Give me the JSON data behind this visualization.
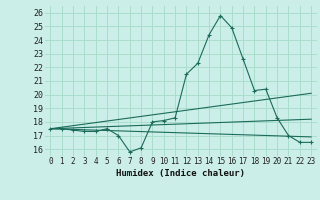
{
  "title": "",
  "xlabel": "Humidex (Indice chaleur)",
  "bg_color": "#cceee8",
  "grid_color": "#aaddcc",
  "line_color": "#1a6b5a",
  "xlim": [
    -0.5,
    23.5
  ],
  "ylim": [
    15.5,
    26.5
  ],
  "xticks": [
    0,
    1,
    2,
    3,
    4,
    5,
    6,
    7,
    8,
    9,
    10,
    11,
    12,
    13,
    14,
    15,
    16,
    17,
    18,
    19,
    20,
    21,
    22,
    23
  ],
  "yticks": [
    16,
    17,
    18,
    19,
    20,
    21,
    22,
    23,
    24,
    25,
    26
  ],
  "series_main": {
    "x": [
      0,
      1,
      2,
      3,
      4,
      5,
      6,
      7,
      8,
      9,
      10,
      11,
      12,
      13,
      14,
      15,
      16,
      17,
      18,
      19,
      20,
      21,
      22,
      23
    ],
    "y": [
      17.5,
      17.5,
      17.4,
      17.3,
      17.3,
      17.5,
      17.0,
      15.8,
      16.1,
      18.0,
      18.1,
      18.3,
      21.5,
      22.3,
      24.4,
      25.8,
      24.9,
      22.6,
      20.3,
      20.4,
      18.3,
      17.0,
      16.5,
      16.5
    ]
  },
  "series_line1": {
    "x": [
      0,
      23
    ],
    "y": [
      17.5,
      18.2
    ]
  },
  "series_line2": {
    "x": [
      0,
      23
    ],
    "y": [
      17.5,
      20.1
    ]
  },
  "series_line3": {
    "x": [
      0,
      23
    ],
    "y": [
      17.5,
      16.9
    ]
  }
}
